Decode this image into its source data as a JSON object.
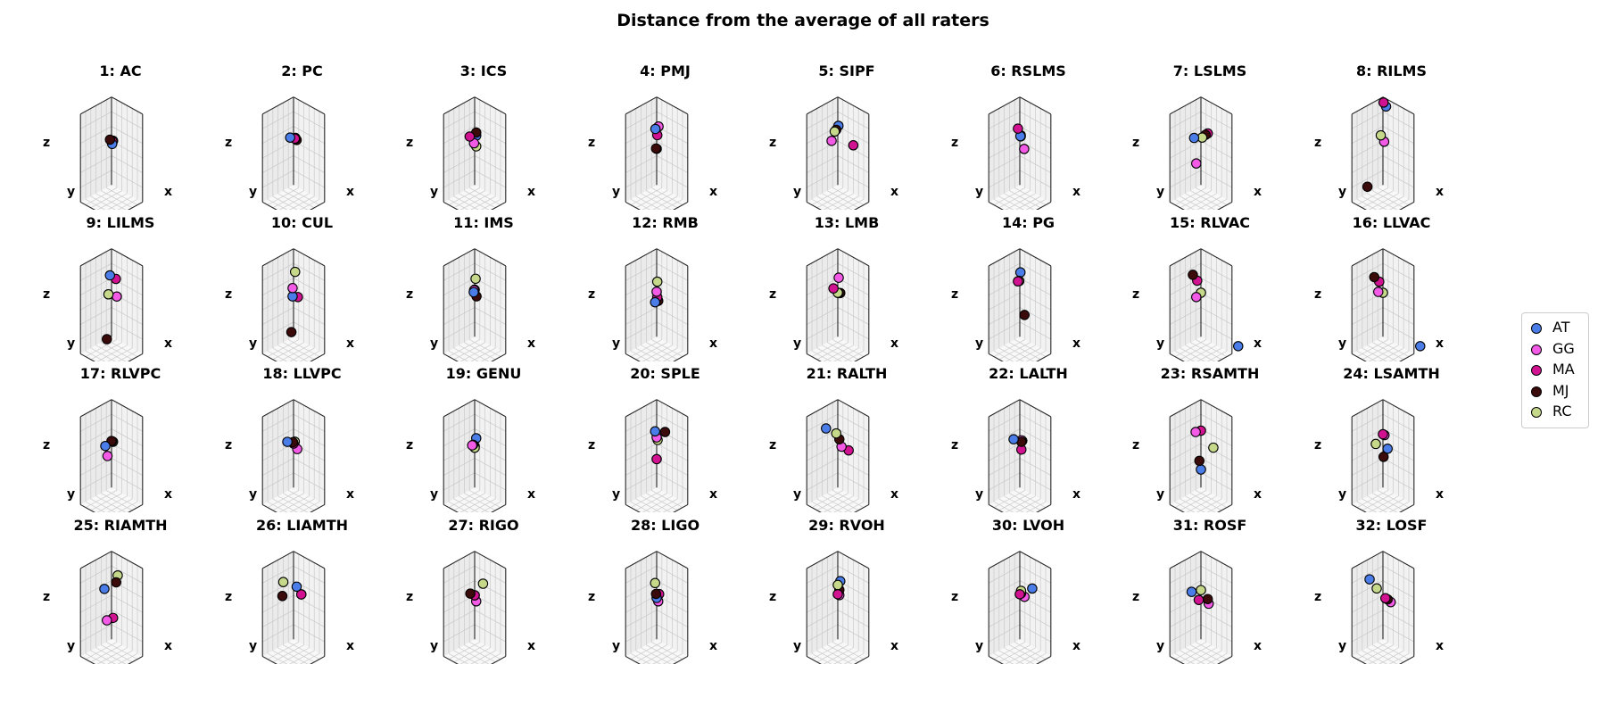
{
  "figure": {
    "title": "Distance from the average of all raters"
  },
  "chart_data": {
    "type": "scatter",
    "title": "Distance from the average of all raters",
    "grid": true,
    "legend_position": "right",
    "axis_labels": {
      "x": "x",
      "y": "y",
      "z": "z"
    },
    "series": [
      {
        "name": "AT",
        "color": "#4a7de8"
      },
      {
        "name": "GG",
        "color": "#f35ae6"
      },
      {
        "name": "MA",
        "color": "#d21391"
      },
      {
        "name": "MJ",
        "color": "#3b0a0a"
      },
      {
        "name": "RC",
        "color": "#c6d98a"
      }
    ],
    "panels": [
      {
        "title": "1: AC",
        "points": {
          "AT": [
            0.02,
            0.0,
            -0.05
          ],
          "GG": [
            0.04,
            0.0,
            0.02
          ],
          "MA": [
            0.03,
            0.0,
            0.0
          ],
          "MJ": [
            -0.02,
            0.03,
            0.03
          ],
          "RC": [
            0.05,
            0.0,
            0.02
          ]
        }
      },
      {
        "title": "2: PC",
        "points": {
          "AT": [
            -0.08,
            0.03,
            0.05
          ],
          "GG": [
            0.06,
            0.0,
            0.08
          ],
          "MA": [
            0.04,
            0.0,
            0.06
          ],
          "MJ": [
            0.08,
            -0.02,
            0.04
          ],
          "RC": [
            0.05,
            0.0,
            0.06
          ]
        }
      },
      {
        "title": "3: ICS",
        "points": {
          "AT": [
            0.05,
            0.0,
            0.12
          ],
          "GG": [
            -0.02,
            0.0,
            -0.05
          ],
          "MA": [
            -0.12,
            0.04,
            0.06
          ],
          "MJ": [
            0.05,
            0.0,
            0.18
          ],
          "RC": [
            0.03,
            -0.02,
            -0.1
          ]
        }
      },
      {
        "title": "4: PMJ",
        "points": {
          "AT": [
            -0.04,
            0.0,
            0.22
          ],
          "GG": [
            0.06,
            0.0,
            0.3
          ],
          "MA": [
            0.02,
            0.0,
            0.12
          ],
          "MJ": [
            -0.02,
            0.0,
            -0.15
          ],
          "RC": [
            0.0,
            0.0,
            -0.15
          ]
        }
      },
      {
        "title": "5: SIPF",
        "points": {
          "AT": [
            0.02,
            0.0,
            0.3
          ],
          "GG": [
            -0.18,
            0.02,
            -0.05
          ],
          "MA": [
            0.45,
            -0.05,
            0.05
          ],
          "MJ": [
            -0.05,
            0.0,
            0.2
          ],
          "RC": [
            -0.1,
            0.0,
            0.15
          ]
        }
      },
      {
        "title": "6: RSLMS",
        "points": {
          "AT": [
            0.02,
            0.0,
            0.1
          ],
          "GG": [
            0.12,
            -0.02,
            -0.12
          ],
          "MA": [
            -0.06,
            0.0,
            0.22
          ],
          "MJ": [
            0.03,
            0.0,
            0.12
          ],
          "RC": [
            0.03,
            0.0,
            0.1
          ]
        }
      },
      {
        "title": "7: LSLMS",
        "points": {
          "AT": [
            -0.2,
            0.02,
            0.0
          ],
          "GG": [
            -0.1,
            0.05,
            -0.45
          ],
          "MA": [
            0.22,
            0.0,
            0.22
          ],
          "MJ": [
            0.15,
            0.0,
            0.17
          ],
          "RC": [
            0.04,
            0.0,
            0.08
          ]
        }
      },
      {
        "title": "8: RILMS",
        "points": {
          "AT": [
            0.1,
            0.0,
            0.7
          ],
          "GG": [
            0.04,
            0.0,
            0.0
          ],
          "MA": [
            0.02,
            0.0,
            0.75
          ],
          "MJ": [
            -0.2,
            0.3,
            -0.85
          ],
          "RC": [
            -0.05,
            0.02,
            0.1
          ]
        }
      },
      {
        "title": "9: LILMS",
        "points": {
          "AT": [
            -0.05,
            0.0,
            0.32
          ],
          "GG": [
            0.12,
            -0.05,
            -0.05
          ],
          "MA": [
            0.12,
            -0.02,
            0.3
          ],
          "MJ": [
            -0.05,
            0.1,
            -0.88
          ],
          "RC": [
            -0.08,
            0.02,
            -0.05
          ]
        }
      },
      {
        "title": "10: CUL",
        "points": {
          "AT": [
            -0.03,
            0.0,
            -0.08
          ],
          "GG": [
            -0.03,
            0.0,
            0.08
          ],
          "MA": [
            0.12,
            -0.02,
            -0.05
          ],
          "MJ": [
            -0.02,
            0.05,
            -0.75
          ],
          "RC": [
            0.05,
            0.0,
            0.42
          ]
        }
      },
      {
        "title": "11: IMS",
        "points": {
          "AT": [
            -0.03,
            0.0,
            0.0
          ],
          "GG": [
            -0.02,
            0.0,
            0.04
          ],
          "MA": [
            0.0,
            0.0,
            0.06
          ],
          "MJ": [
            0.06,
            0.0,
            -0.05
          ],
          "RC": [
            0.03,
            0.0,
            0.28
          ]
        }
      },
      {
        "title": "12: RMB",
        "points": {
          "AT": [
            -0.05,
            0.0,
            -0.2
          ],
          "GG": [
            0.0,
            0.0,
            0.02
          ],
          "MA": [
            0.02,
            0.0,
            -0.08
          ],
          "MJ": [
            0.05,
            0.0,
            -0.14
          ],
          "RC": [
            0.02,
            0.0,
            0.22
          ]
        }
      },
      {
        "title": "13: LMB",
        "points": {
          "AT": [
            0.02,
            0.0,
            0.0
          ],
          "GG": [
            0.03,
            0.0,
            0.3
          ],
          "MA": [
            -0.12,
            0.02,
            0.05
          ],
          "MJ": [
            0.08,
            0.0,
            0.02
          ],
          "RC": [
            0.0,
            0.0,
            0.0
          ]
        }
      },
      {
        "title": "14: PG",
        "points": {
          "AT": [
            0.02,
            0.0,
            0.4
          ],
          "GG": [
            -0.02,
            0.0,
            0.22
          ],
          "MA": [
            -0.06,
            0.0,
            0.2
          ],
          "MJ": [
            0.15,
            0.0,
            -0.38
          ],
          "RC": [
            -0.02,
            0.0,
            0.22
          ]
        }
      },
      {
        "title": "15: RLVAC",
        "points": {
          "AT": [
            0.8,
            -0.4,
            -0.9
          ],
          "GG": [
            -0.1,
            0.05,
            -0.1
          ],
          "MA": [
            -0.08,
            0.04,
            0.22
          ],
          "MJ": [
            -0.2,
            0.06,
            0.3
          ],
          "RC": [
            0.0,
            0.0,
            0.0
          ]
        }
      },
      {
        "title": "16: LLVAC",
        "points": {
          "AT": [
            0.8,
            -0.4,
            -0.9
          ],
          "GG": [
            -0.1,
            0.05,
            0.0
          ],
          "MA": [
            -0.08,
            0.04,
            0.2
          ],
          "MJ": [
            -0.22,
            0.06,
            0.25
          ],
          "RC": [
            0.0,
            0.0,
            0.0
          ]
        }
      },
      {
        "title": "17: RLVPC",
        "points": {
          "AT": [
            -0.15,
            0.05,
            -0.08
          ],
          "GG": [
            -0.08,
            0.05,
            -0.25
          ],
          "MA": [
            0.02,
            0.0,
            0.05
          ],
          "MJ": [
            0.0,
            0.0,
            0.05
          ],
          "RC": [
            0.05,
            0.0,
            0.05
          ]
        }
      },
      {
        "title": "18: LLVPC",
        "points": {
          "AT": [
            -0.15,
            0.05,
            0.0
          ],
          "GG": [
            0.1,
            -0.02,
            -0.08
          ],
          "MA": [
            0.0,
            0.0,
            0.0
          ],
          "MJ": [
            -0.02,
            0.0,
            0.02
          ],
          "RC": [
            0.04,
            0.0,
            0.05
          ]
        }
      },
      {
        "title": "19: GENU",
        "points": {
          "AT": [
            0.05,
            0.0,
            0.12
          ],
          "GG": [
            -0.08,
            0.0,
            -0.06
          ],
          "MA": [
            -0.05,
            0.0,
            -0.04
          ],
          "MJ": [
            0.0,
            0.0,
            -0.05
          ],
          "RC": [
            0.0,
            0.0,
            -0.08
          ]
        }
      },
      {
        "title": "20: SPLE",
        "points": {
          "AT": [
            -0.05,
            0.0,
            0.22
          ],
          "GG": [
            0.0,
            0.0,
            0.12
          ],
          "MA": [
            0.0,
            0.0,
            -0.3
          ],
          "MJ": [
            0.25,
            -0.02,
            0.3
          ],
          "RC": [
            0.03,
            0.0,
            0.08
          ]
        }
      },
      {
        "title": "21: RALTH",
        "points": {
          "AT": [
            -0.3,
            0.08,
            0.22
          ],
          "GG": [
            0.12,
            0.0,
            -0.02
          ],
          "MA": [
            0.3,
            -0.05,
            -0.05
          ],
          "MJ": [
            0.05,
            0.0,
            0.1
          ],
          "RC": [
            -0.05,
            0.0,
            0.18
          ]
        }
      },
      {
        "title": "22: LALTH",
        "points": {
          "AT": [
            -0.15,
            0.05,
            0.05
          ],
          "GG": [
            0.05,
            0.0,
            0.08
          ],
          "MA": [
            0.05,
            0.0,
            -0.1
          ],
          "MJ": [
            0.05,
            0.0,
            0.05
          ],
          "RC": [
            0.08,
            0.0,
            0.08
          ]
        }
      },
      {
        "title": "23: RSAMTH",
        "points": {
          "AT": [
            0.0,
            0.0,
            -0.5
          ],
          "GG": [
            -0.12,
            0.05,
            0.2
          ],
          "MA": [
            0.0,
            0.0,
            0.25
          ],
          "MJ": [
            -0.05,
            0.0,
            -0.35
          ],
          "RC": [
            0.35,
            -0.05,
            0.02
          ]
        }
      },
      {
        "title": "24: LSAMTH",
        "points": {
          "AT": [
            0.15,
            0.0,
            -0.05
          ],
          "GG": [
            0.05,
            0.0,
            0.18
          ],
          "MA": [
            0.0,
            0.0,
            0.18
          ],
          "MJ": [
            0.02,
            0.0,
            -0.25
          ],
          "RC": [
            -0.18,
            0.05,
            -0.05
          ]
        }
      },
      {
        "title": "25: RIAMTH",
        "points": {
          "AT": [
            -0.15,
            0.08,
            0.1
          ],
          "GG": [
            -0.1,
            0.05,
            -0.5
          ],
          "MA": [
            0.05,
            0.0,
            -0.42
          ],
          "MJ": [
            0.15,
            0.0,
            0.3
          ],
          "RC": [
            0.2,
            0.0,
            0.45
          ]
        }
      },
      {
        "title": "26: LIAMTH",
        "points": {
          "AT": [
            0.1,
            0.0,
            0.2
          ],
          "GG": [
            0.25,
            0.0,
            0.1
          ],
          "MA": [
            0.25,
            0.0,
            0.1
          ],
          "MJ": [
            -0.28,
            0.08,
            -0.08
          ],
          "RC": [
            -0.25,
            0.08,
            0.2
          ]
        }
      },
      {
        "title": "27: RIGO",
        "points": {
          "AT": [
            0.0,
            0.0,
            0.0
          ],
          "GG": [
            0.05,
            0.0,
            -0.1
          ],
          "MA": [
            0.0,
            0.0,
            0.0
          ],
          "MJ": [
            -0.12,
            0.02,
            0.0
          ],
          "RC": [
            0.25,
            -0.02,
            0.3
          ]
        }
      },
      {
        "title": "28: LIGO",
        "points": {
          "AT": [
            0.0,
            0.0,
            -0.05
          ],
          "GG": [
            0.05,
            0.0,
            -0.1
          ],
          "MA": [
            0.08,
            0.0,
            0.05
          ],
          "MJ": [
            -0.02,
            0.0,
            0.02
          ],
          "RC": [
            -0.05,
            0.0,
            0.22
          ]
        }
      },
      {
        "title": "29: RVOH",
        "points": {
          "AT": [
            0.08,
            0.0,
            0.3
          ],
          "GG": [
            0.05,
            0.0,
            0.02
          ],
          "MA": [
            0.0,
            0.0,
            0.02
          ],
          "MJ": [
            0.05,
            0.0,
            0.12
          ],
          "RC": [
            0.0,
            0.0,
            0.2
          ]
        }
      },
      {
        "title": "30: LVOH",
        "points": {
          "AT": [
            0.38,
            -0.02,
            0.25
          ],
          "GG": [
            0.15,
            0.0,
            0.02
          ],
          "MA": [
            0.0,
            0.0,
            0.02
          ],
          "MJ": [
            0.04,
            0.0,
            0.05
          ],
          "RC": [
            0.04,
            0.0,
            0.1
          ]
        }
      },
      {
        "title": "31: ROSF",
        "points": {
          "AT": [
            -0.25,
            0.05,
            0.0
          ],
          "GG": [
            0.25,
            0.0,
            -0.08
          ],
          "MA": [
            -0.05,
            0.02,
            -0.1
          ],
          "MJ": [
            0.22,
            0.0,
            0.0
          ],
          "RC": [
            0.0,
            0.0,
            0.1
          ]
        }
      },
      {
        "title": "32: LOSF",
        "points": {
          "AT": [
            -0.38,
            0.05,
            0.2
          ],
          "GG": [
            0.25,
            0.0,
            -0.05
          ],
          "MA": [
            0.08,
            0.0,
            -0.03
          ],
          "MJ": [
            0.15,
            0.0,
            -0.03
          ],
          "RC": [
            -0.18,
            0.02,
            0.08
          ]
        }
      }
    ]
  }
}
